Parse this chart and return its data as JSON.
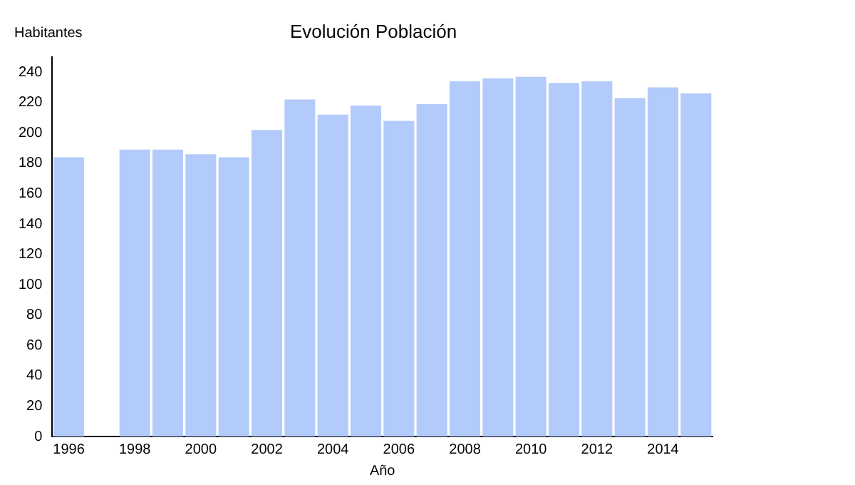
{
  "chart_data": {
    "type": "bar",
    "title": "Evolución Población",
    "ylabel": "Habitantes",
    "xlabel": "Año",
    "categories": [
      "1996",
      null,
      "1998",
      null,
      "2000",
      null,
      "2002",
      null,
      "2004",
      null,
      "2006",
      null,
      "2008",
      null,
      "2010",
      null,
      "2012",
      null,
      "2014",
      null
    ],
    "values": [
      184,
      null,
      189,
      189,
      186,
      184,
      202,
      222,
      212,
      218,
      208,
      219,
      234,
      236,
      237,
      233,
      234,
      223,
      230,
      226
    ],
    "color": "#b3cbfa",
    "ylim": [
      0,
      250
    ],
    "yticks": [
      0,
      20,
      40,
      60,
      80,
      100,
      120,
      140,
      160,
      180,
      200,
      220,
      240
    ],
    "grid": false,
    "legend": false
  }
}
